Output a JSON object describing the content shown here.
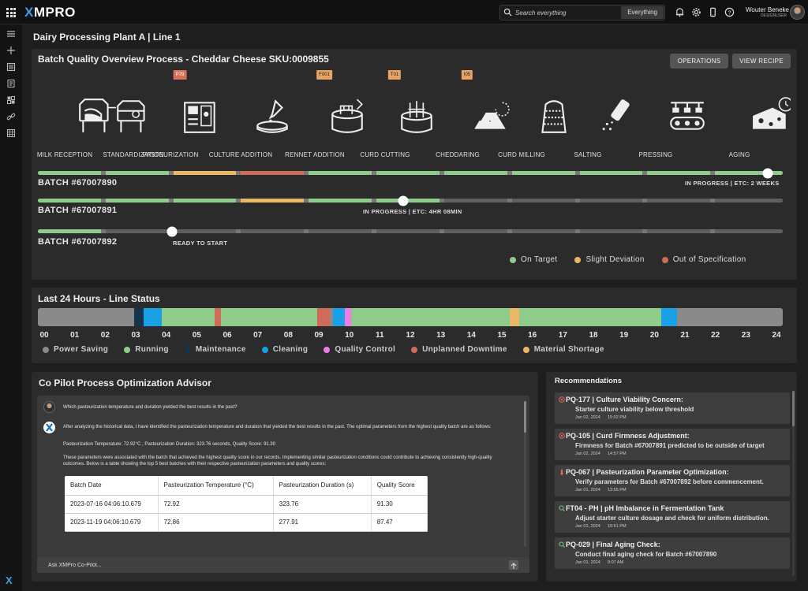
{
  "app": {
    "logo_prefix": "",
    "logo_x": "X",
    "logo_rest": "MPRO"
  },
  "search": {
    "placeholder": "Search everything",
    "scope": "Everything"
  },
  "user": {
    "name": "Wouter Beneke",
    "role": "DESIGNUSER"
  },
  "page": {
    "title": "Dairy Processing Plant A | Line 1"
  },
  "overview": {
    "title": "Batch Quality Overview Process - Cheddar Cheese SKU:0009855",
    "operations_label": "OPERATIONS",
    "view_recipe_label": "VIEW RECIPE",
    "stages": [
      "MILK RECEPTION",
      "STANDARDIZATION",
      "PASTEURIZATION",
      "CULTURE ADDITION",
      "RENNET ADDITION",
      "CURD CUTTING",
      "CHEDDARING",
      "CURD MILLING",
      "SALTING",
      "PRESSING",
      "AGING"
    ],
    "tags": [
      {
        "label": "P78",
        "stage": 2,
        "status": "red"
      },
      {
        "label": "F001",
        "stage": 4,
        "status": "yellow"
      },
      {
        "label": "T01",
        "stage": 5,
        "status": "yellow"
      },
      {
        "label": "I05",
        "stage": 6,
        "status": "yellow"
      }
    ],
    "batches": [
      {
        "id": "BATCH #67007890",
        "progress_label": "IN PROGRESS  |  ETC: 2 WEEKS",
        "progress": 0.98,
        "segments": [
          "green",
          "green",
          "yellow",
          "red",
          "green",
          "green",
          "green",
          "green",
          "green",
          "green",
          "green"
        ]
      },
      {
        "id": "BATCH #67007891",
        "progress_label": "IN PROGRESS  |  ETC: 4HR 08MIN",
        "progress": 0.49,
        "segments": [
          "green",
          "green",
          "green",
          "yellow",
          "green",
          "green",
          "gray",
          "gray",
          "gray",
          "gray",
          "gray"
        ]
      },
      {
        "id": "BATCH #67007892",
        "progress_label": "READY TO START",
        "progress": 0.18,
        "segments": [
          "green",
          "gray",
          "gray",
          "gray",
          "gray",
          "gray",
          "gray",
          "gray",
          "gray",
          "gray",
          "gray"
        ]
      }
    ],
    "legend": [
      {
        "label": "On Target",
        "color": "#8fcc8c"
      },
      {
        "label": "Slight Deviation",
        "color": "#e9b865"
      },
      {
        "label": "Out of Specification",
        "color": "#cf6b58"
      }
    ]
  },
  "line_status": {
    "title": "Last 24 Hours - Line Status",
    "hours": [
      "00",
      "01",
      "02",
      "03",
      "04",
      "05",
      "06",
      "07",
      "08",
      "09",
      "10",
      "11",
      "12",
      "13",
      "14",
      "15",
      "16",
      "17",
      "18",
      "19",
      "20",
      "21",
      "22",
      "23",
      "24"
    ],
    "segments": [
      {
        "state": "Power Saving",
        "from": 0,
        "to": 3.1
      },
      {
        "state": "Maintenance",
        "from": 3.1,
        "to": 3.4
      },
      {
        "state": "Cleaning",
        "from": 3.4,
        "to": 4.0
      },
      {
        "state": "Running",
        "from": 4.0,
        "to": 5.7
      },
      {
        "state": "Unplanned Downtime",
        "from": 5.7,
        "to": 5.9
      },
      {
        "state": "Running",
        "from": 5.9,
        "to": 9.0
      },
      {
        "state": "Unplanned Downtime",
        "from": 9.0,
        "to": 9.4
      },
      {
        "state": "Power Saving",
        "from": 9.4,
        "to": 9.5
      },
      {
        "state": "Cleaning",
        "from": 9.5,
        "to": 9.9
      },
      {
        "state": "Quality Control",
        "from": 9.9,
        "to": 10.1
      },
      {
        "state": "Running",
        "from": 10.1,
        "to": 15.2
      },
      {
        "state": "Material Shortage",
        "from": 15.2,
        "to": 15.5
      },
      {
        "state": "Running",
        "from": 15.5,
        "to": 20.1
      },
      {
        "state": "Cleaning",
        "from": 20.1,
        "to": 20.6
      },
      {
        "state": "Power Saving",
        "from": 20.6,
        "to": 24
      }
    ],
    "legend": [
      {
        "label": "Power Saving",
        "color": "#8a8a8a"
      },
      {
        "label": "Running",
        "color": "#8fcc8c"
      },
      {
        "label": "Maintenance",
        "color": "#12344f"
      },
      {
        "label": "Cleaning",
        "color": "#19a1e6"
      },
      {
        "label": "Quality Control",
        "color": "#f07ce8"
      },
      {
        "label": "Unplanned Downtime",
        "color": "#cf6b58"
      },
      {
        "label": "Material Shortage",
        "color": "#e9b865"
      }
    ]
  },
  "copilot": {
    "title": "Co Pilot Process Optimization Advisor",
    "question": "Which pasteurization temperature and duration yielded the best results in the past?",
    "answer_intro": "After analyzing the historical data, I have identified the pasteurization temperature and duration that yielded the best results in the past. The optimal parameters from the highest quality batch are as follows:",
    "answer_params": "Pasteurization Temperature: 72.92°C , Pasteurization Duration: 323.76 seconds, Quality Score: 91.30",
    "answer_outro": "These parameters were associated with the batch that achieved the highest quality score in our records. Implementing similar pasteurization conditions could contribute to achieving consistently high-quality outcomes. Below is a table showing the top 5 best batches with their respective pasteurization parameters and quality scores:",
    "table": {
      "headers": [
        "Batch Date",
        "Pasteurization Temperature (°C)",
        "Pasteurization Duration (s)",
        "Quality Score"
      ],
      "rows": [
        [
          "2023-07-16 04:06:10.679",
          "72.92",
          "323.76",
          "91.30"
        ],
        [
          "2023-11-19 04:06:10.679",
          "72.86",
          "277.91",
          "87.47"
        ]
      ]
    },
    "input_placeholder": "Ask XMPro Co-Pilot..."
  },
  "recommendations": {
    "title": "Recommendations",
    "items": [
      {
        "icon": "x-circle-icon",
        "title": "PQ-177 | Culture Viability Concern:",
        "desc": "Starter culture viability below threshold",
        "date": "Jan 02, 2024",
        "time": "15:02 PM"
      },
      {
        "icon": "x-circle-icon",
        "title": "PQ-105 | Curd Firmness Adjustment:",
        "desc": "Firmness for Batch #67007891 predicted to be outside of target",
        "date": "Jan 02, 2024",
        "time": "14:57 PM"
      },
      {
        "icon": "thermometer-icon",
        "title": "PQ-067 | Pasteurization Parameter Optimization:",
        "desc": "Verify parameters for Batch #67007892 before commencement.",
        "date": "Jan 01, 2024",
        "time": "13:55 PM"
      },
      {
        "icon": "magnify-icon",
        "title": "FT04 - PH | pH Imbalance in Fermentation Tank",
        "desc": "Adjust starter culture dosage and check for uniform distribution.",
        "date": "Jan 01, 2024",
        "time": "10:51 PM"
      },
      {
        "icon": "magnify-icon",
        "title": "PQ-029 | Final Aging Check:",
        "desc": "Conduct final aging check for Batch #67007890",
        "date": "Jan 01, 2024",
        "time": "9:07 AM"
      }
    ]
  }
}
